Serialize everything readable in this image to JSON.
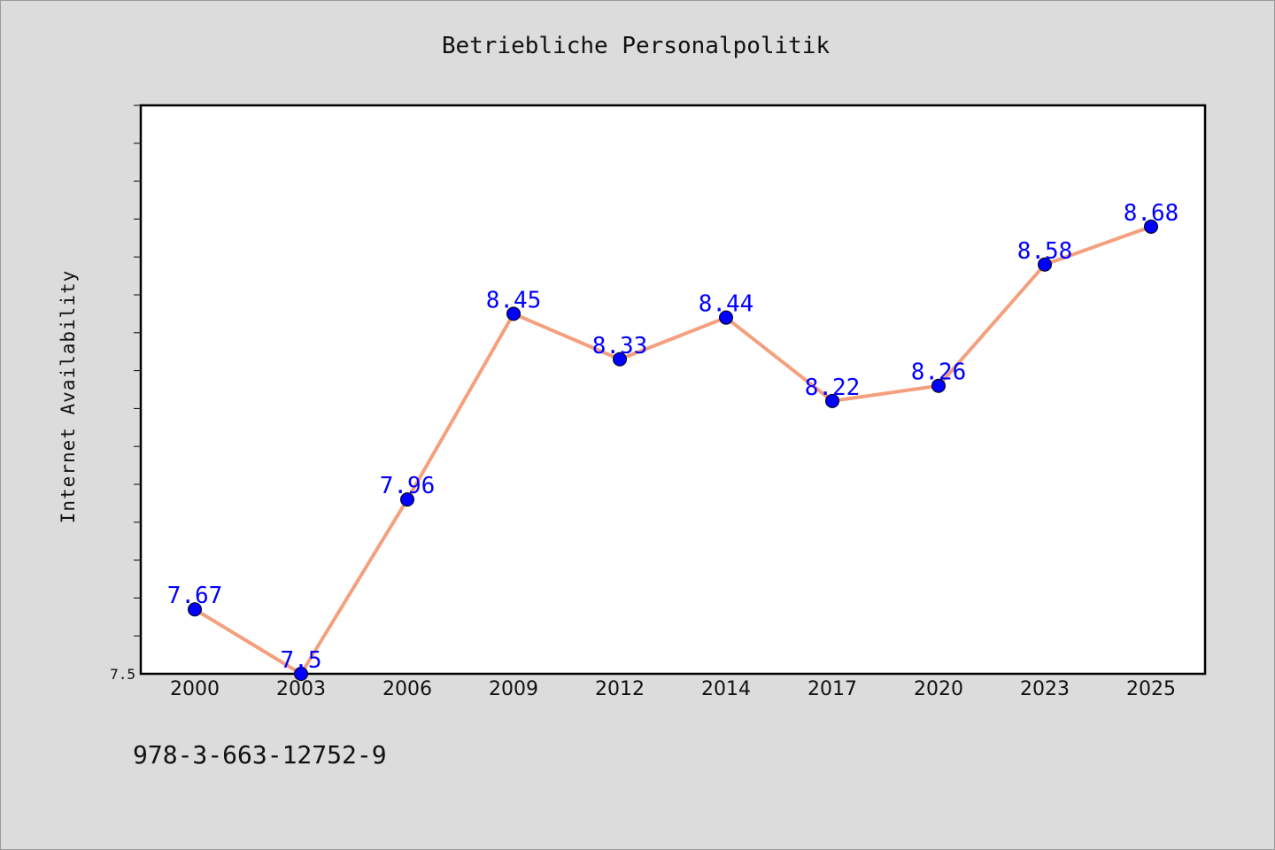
{
  "chart_data": {
    "type": "line",
    "title": "Betriebliche Personalpolitik",
    "ylabel": "Internet Availability",
    "xlabel": "",
    "categories": [
      "2000",
      "2003",
      "2006",
      "2009",
      "2012",
      "2014",
      "2017",
      "2020",
      "2023",
      "2025"
    ],
    "series": [
      {
        "values": [
          7.67,
          7.5,
          7.96,
          8.45,
          8.33,
          8.44,
          8.22,
          8.26,
          8.58,
          8.68
        ],
        "data_labels": [
          "7.67",
          "7.5",
          "7.96",
          "8.45",
          "8.33",
          "8.44",
          "8.22",
          "8.26",
          "8.58",
          "8.68"
        ],
        "line_color": "#f4a07f",
        "marker_color": "#0000ff"
      }
    ],
    "y_tick_labels": [
      {
        "value": 7.5,
        "label": "7.5"
      }
    ],
    "ylim": [
      7.5,
      9.0
    ],
    "label_color": "#0000ff",
    "grid": false,
    "legend": "none"
  },
  "footer": {
    "isbn": "978-3-663-12752-9"
  }
}
